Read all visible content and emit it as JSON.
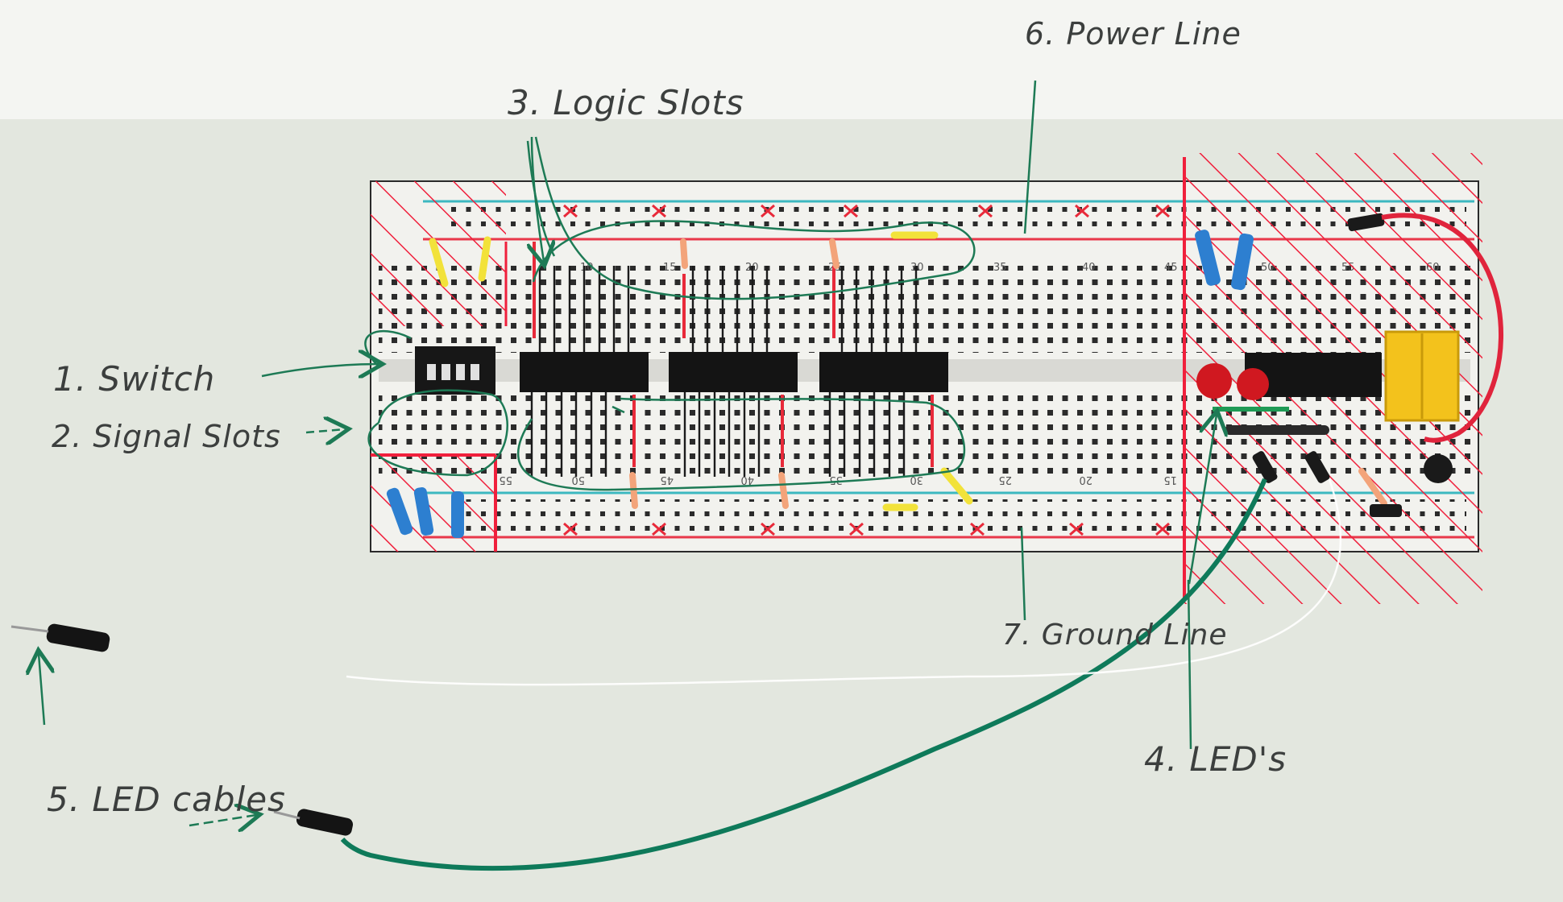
{
  "labels": {
    "switch": "1. Switch",
    "signal_slots": "2. Signal Slots",
    "logic_slots": "3. Logic Slots",
    "leds": "4. LED's",
    "led_cables": "5. LED cables",
    "power_line": "6. Power Line",
    "ground_line": "7. Ground Line"
  },
  "column_numbers_top": [
    "10",
    "15",
    "20",
    "25",
    "30",
    "35",
    "40",
    "45",
    "50",
    "55",
    "60"
  ],
  "column_numbers_bottom": [
    "55",
    "50",
    "45",
    "40",
    "35",
    "30",
    "25",
    "20",
    "15"
  ],
  "colors": {
    "paper": "#e6e9e2",
    "board": "#f2f2ee",
    "hatch_red": "#f0203c",
    "green_ink": "#1d7a55",
    "rail_blue": "#3cb8c0",
    "rail_red": "#e8384a",
    "chip": "#141414",
    "wire_green": "#0e7a5a",
    "led_red": "#d01820",
    "resistor_blue": "#2d7fd0",
    "jumper_yellow": "#f2e23a"
  }
}
